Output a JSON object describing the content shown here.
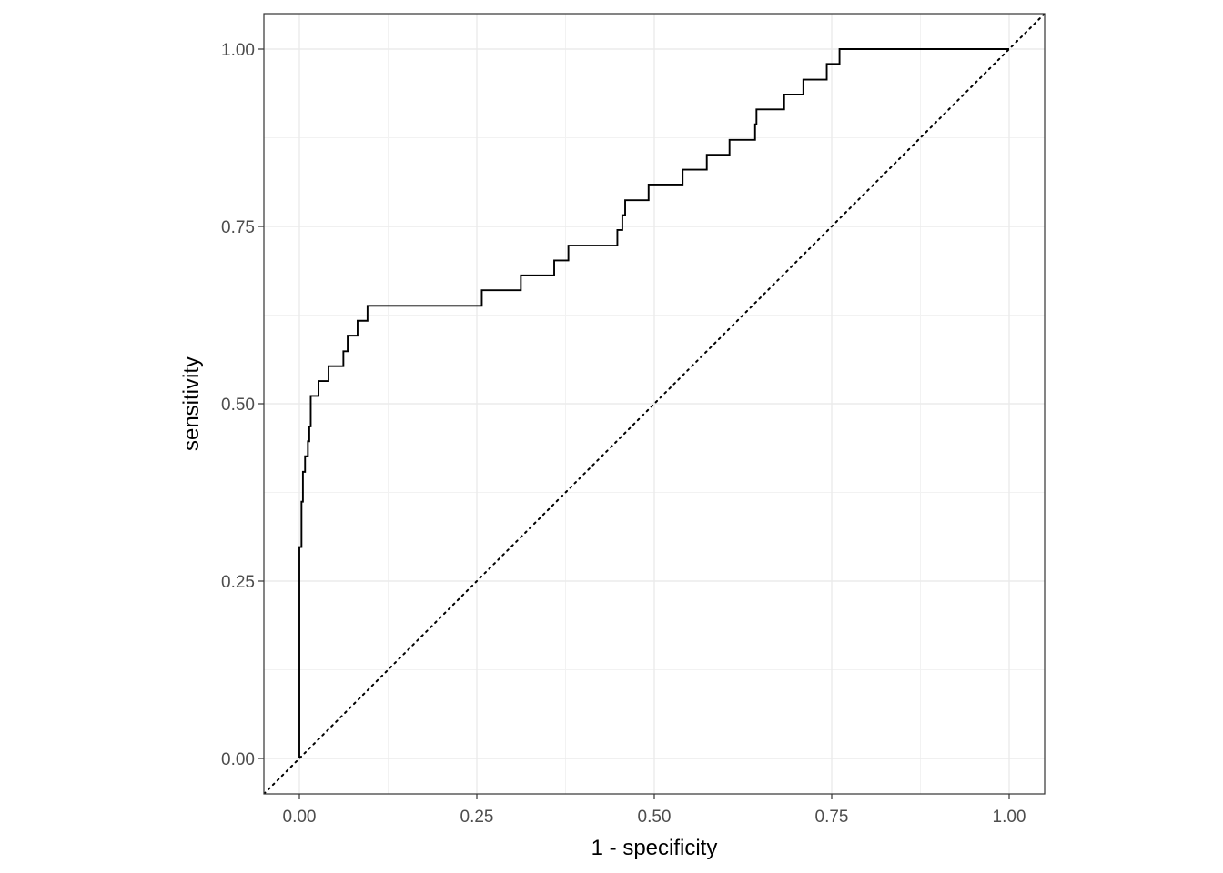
{
  "chart_data": {
    "type": "line",
    "title": "",
    "xlabel": "1 - specificity",
    "ylabel": "sensitivity",
    "xlim": [
      -0.05,
      1.05
    ],
    "ylim": [
      -0.05,
      1.05
    ],
    "x_ticks": [
      "0.00",
      "0.25",
      "0.50",
      "0.75",
      "1.00"
    ],
    "y_ticks": [
      "0.00",
      "0.25",
      "0.50",
      "0.75",
      "1.00"
    ],
    "aspect": "equal",
    "grid": true,
    "legend": "none",
    "series": [
      {
        "style": "step",
        "color": "#000000",
        "points": [
          [
            0.0,
            0.0
          ],
          [
            0.0,
            0.298
          ],
          [
            0.003,
            0.298
          ],
          [
            0.003,
            0.362
          ],
          [
            0.005,
            0.362
          ],
          [
            0.005,
            0.404
          ],
          [
            0.008,
            0.404
          ],
          [
            0.008,
            0.426
          ],
          [
            0.012,
            0.426
          ],
          [
            0.012,
            0.447
          ],
          [
            0.014,
            0.447
          ],
          [
            0.014,
            0.468
          ],
          [
            0.016,
            0.468
          ],
          [
            0.016,
            0.511
          ],
          [
            0.027,
            0.511
          ],
          [
            0.027,
            0.532
          ],
          [
            0.041,
            0.532
          ],
          [
            0.041,
            0.553
          ],
          [
            0.062,
            0.553
          ],
          [
            0.062,
            0.574
          ],
          [
            0.068,
            0.574
          ],
          [
            0.068,
            0.596
          ],
          [
            0.082,
            0.596
          ],
          [
            0.082,
            0.617
          ],
          [
            0.096,
            0.617
          ],
          [
            0.096,
            0.638
          ],
          [
            0.257,
            0.638
          ],
          [
            0.257,
            0.66
          ],
          [
            0.312,
            0.66
          ],
          [
            0.312,
            0.681
          ],
          [
            0.359,
            0.681
          ],
          [
            0.359,
            0.702
          ],
          [
            0.379,
            0.702
          ],
          [
            0.379,
            0.723
          ],
          [
            0.448,
            0.723
          ],
          [
            0.448,
            0.745
          ],
          [
            0.455,
            0.745
          ],
          [
            0.455,
            0.766
          ],
          [
            0.459,
            0.766
          ],
          [
            0.459,
            0.787
          ],
          [
            0.492,
            0.787
          ],
          [
            0.492,
            0.809
          ],
          [
            0.54,
            0.809
          ],
          [
            0.54,
            0.83
          ],
          [
            0.574,
            0.83
          ],
          [
            0.574,
            0.851
          ],
          [
            0.606,
            0.851
          ],
          [
            0.606,
            0.872
          ],
          [
            0.642,
            0.872
          ],
          [
            0.642,
            0.894
          ],
          [
            0.644,
            0.894
          ],
          [
            0.644,
            0.915
          ],
          [
            0.683,
            0.915
          ],
          [
            0.683,
            0.936
          ],
          [
            0.71,
            0.936
          ],
          [
            0.71,
            0.957
          ],
          [
            0.743,
            0.957
          ],
          [
            0.743,
            0.979
          ],
          [
            0.761,
            0.979
          ],
          [
            0.761,
            1.0
          ],
          [
            1.0,
            1.0
          ]
        ]
      },
      {
        "style": "dotted",
        "color": "#000000",
        "points": [
          [
            -0.05,
            -0.05
          ],
          [
            1.05,
            1.05
          ]
        ]
      }
    ]
  }
}
